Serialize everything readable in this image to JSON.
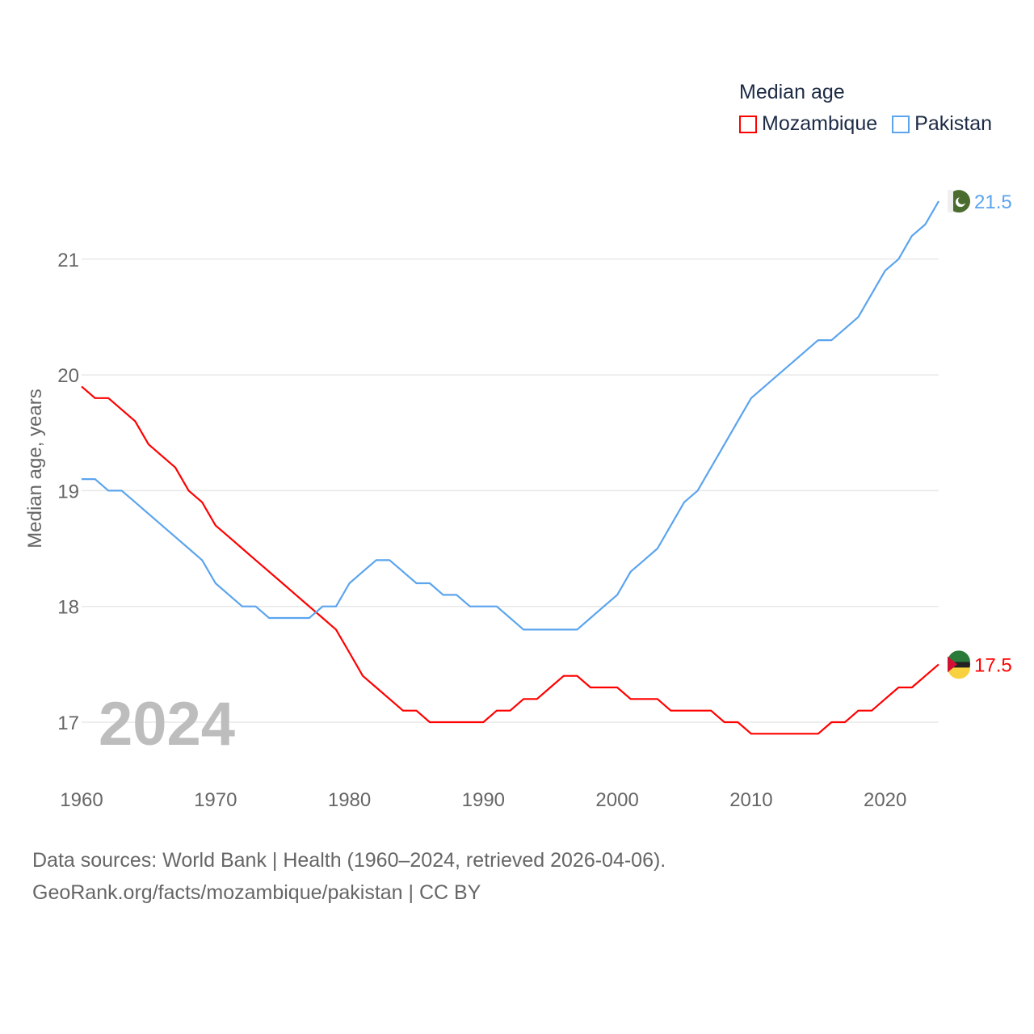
{
  "chart_data": {
    "type": "line",
    "title": "Median age",
    "ylabel": "Median age, years",
    "xlabel": "",
    "xlim": [
      1960,
      2024
    ],
    "ylim": [
      16.6,
      21.9
    ],
    "x_ticks": [
      "1960",
      "1970",
      "1980",
      "1990",
      "2000",
      "2010",
      "2020"
    ],
    "y_ticks": [
      "17",
      "18",
      "19",
      "20",
      "21"
    ],
    "grid": true,
    "legend_placement": "top-right",
    "year_label": "2024",
    "x": [
      1960,
      1961,
      1962,
      1963,
      1964,
      1965,
      1966,
      1967,
      1968,
      1969,
      1970,
      1971,
      1972,
      1973,
      1974,
      1975,
      1976,
      1977,
      1978,
      1979,
      1980,
      1981,
      1982,
      1983,
      1984,
      1985,
      1986,
      1987,
      1988,
      1989,
      1990,
      1991,
      1992,
      1993,
      1994,
      1995,
      1996,
      1997,
      1998,
      1999,
      2000,
      2001,
      2002,
      2003,
      2004,
      2005,
      2006,
      2007,
      2008,
      2009,
      2010,
      2011,
      2012,
      2013,
      2014,
      2015,
      2016,
      2017,
      2018,
      2019,
      2020,
      2021,
      2022,
      2023,
      2024
    ],
    "series": [
      {
        "name": "Mozambique",
        "color": "#ff0000",
        "end_label": "17.5",
        "flag": "mozambique-flag",
        "values": [
          19.9,
          19.8,
          19.8,
          19.7,
          19.6,
          19.4,
          19.3,
          19.2,
          19.0,
          18.9,
          18.7,
          18.6,
          18.5,
          18.4,
          18.3,
          18.2,
          18.1,
          18.0,
          17.9,
          17.8,
          17.6,
          17.4,
          17.3,
          17.2,
          17.1,
          17.1,
          17.0,
          17.0,
          17.0,
          17.0,
          17.0,
          17.1,
          17.1,
          17.2,
          17.2,
          17.3,
          17.4,
          17.4,
          17.3,
          17.3,
          17.3,
          17.2,
          17.2,
          17.2,
          17.1,
          17.1,
          17.1,
          17.1,
          17.0,
          17.0,
          16.9,
          16.9,
          16.9,
          16.9,
          16.9,
          16.9,
          17.0,
          17.0,
          17.1,
          17.1,
          17.2,
          17.3,
          17.3,
          17.4,
          17.5
        ]
      },
      {
        "name": "Pakistan",
        "color": "#5ba4ee",
        "end_label": "21.5",
        "flag": "pakistan-flag",
        "values": [
          19.1,
          19.1,
          19.0,
          19.0,
          18.9,
          18.8,
          18.7,
          18.6,
          18.5,
          18.4,
          18.2,
          18.1,
          18.0,
          18.0,
          17.9,
          17.9,
          17.9,
          17.9,
          18.0,
          18.0,
          18.2,
          18.3,
          18.4,
          18.4,
          18.3,
          18.2,
          18.2,
          18.1,
          18.1,
          18.0,
          18.0,
          18.0,
          17.9,
          17.8,
          17.8,
          17.8,
          17.8,
          17.8,
          17.9,
          18.0,
          18.1,
          18.3,
          18.4,
          18.5,
          18.7,
          18.9,
          19.0,
          19.2,
          19.4,
          19.6,
          19.8,
          19.9,
          20.0,
          20.1,
          20.2,
          20.3,
          20.3,
          20.4,
          20.5,
          20.7,
          20.9,
          21.0,
          21.2,
          21.3,
          21.5
        ]
      }
    ]
  },
  "footer": {
    "line1": "Data sources: World Bank | Health (1960–2024, retrieved 2026-04-06).",
    "line2": "GeoRank.org/facts/mozambique/pakistan | CC BY"
  }
}
